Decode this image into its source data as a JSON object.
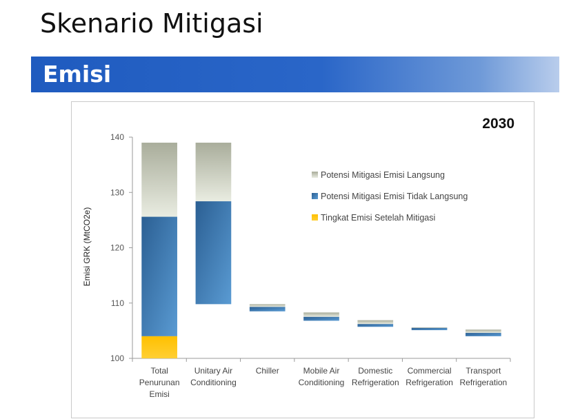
{
  "page": {
    "title": "Skenario Mitigasi",
    "section": "Emisi"
  },
  "colors": {
    "direct": "#c8cbbd",
    "indirect": "#3f7ab6",
    "after": "#ffc000"
  },
  "chart_data": {
    "type": "bar",
    "title": "2030",
    "ylabel": "Emisi GRK  (MtCO2e)",
    "xlabel": "",
    "ylim": [
      100,
      140
    ],
    "yticks": [
      100,
      110,
      120,
      130,
      140
    ],
    "grid": false,
    "legend_position": "right",
    "categories": [
      [
        "Total",
        "Penurunan",
        "Emisi"
      ],
      [
        "Unitary Air",
        "Conditioning"
      ],
      [
        "Chiller"
      ],
      [
        "Mobile Air",
        "Conditioning"
      ],
      [
        "Domestic",
        "Refrigeration"
      ],
      [
        "Commercial",
        "Refrigeration"
      ],
      [
        "Transport",
        "Refrigeration"
      ]
    ],
    "series": [
      {
        "name": "Potensi Mitigasi Emisi Langsung",
        "ranges": [
          [
            125.6,
            139.0
          ],
          [
            128.4,
            139.0
          ],
          [
            109.3,
            109.8
          ],
          [
            107.5,
            108.3
          ],
          [
            106.2,
            106.9
          ],
          [
            105.5,
            105.6
          ],
          [
            104.6,
            105.2
          ]
        ]
      },
      {
        "name": "Potensi Mitigasi Emisi Tidak Langsung",
        "ranges": [
          [
            104.0,
            125.6
          ],
          [
            109.8,
            128.4
          ],
          [
            108.5,
            109.3
          ],
          [
            106.8,
            107.5
          ],
          [
            105.7,
            106.2
          ],
          [
            105.1,
            105.5
          ],
          [
            104.0,
            104.6
          ]
        ]
      },
      {
        "name": "Tingkat Emisi Setelah Mitigasi",
        "ranges": [
          [
            100,
            104.0
          ],
          null,
          null,
          null,
          null,
          null,
          null
        ]
      }
    ]
  }
}
